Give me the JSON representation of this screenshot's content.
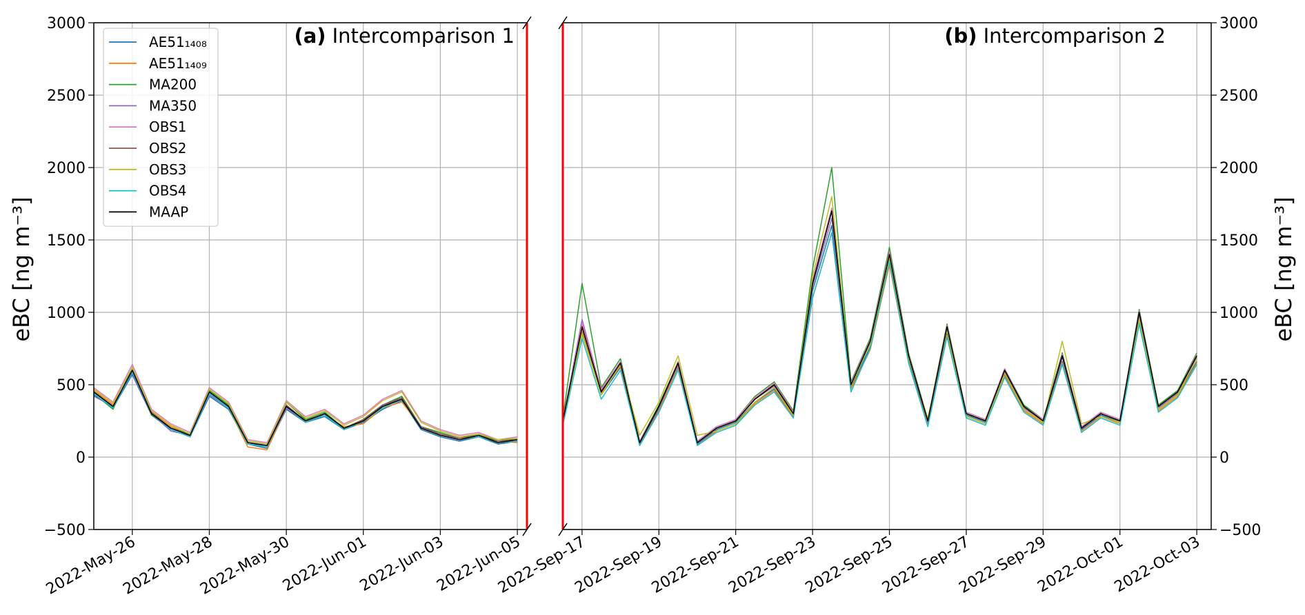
{
  "chart_data": [
    {
      "type": "line",
      "panel_label": "(a)",
      "title": "Intercomparison 1",
      "ylabel": "eBC [ng m⁻³]",
      "yaxis_side": "left",
      "legend": "upper left",
      "grid": true,
      "x": [
        "2022-05-25T00:00",
        "2022-05-25T12:00",
        "2022-05-26T00:00",
        "2022-05-26T12:00",
        "2022-05-27T00:00",
        "2022-05-27T12:00",
        "2022-05-28T00:00",
        "2022-05-28T12:00",
        "2022-05-29T00:00",
        "2022-05-29T12:00",
        "2022-05-30T00:00",
        "2022-05-30T12:00",
        "2022-05-31T00:00",
        "2022-05-31T12:00",
        "2022-06-01T00:00",
        "2022-06-01T12:00",
        "2022-06-02T00:00",
        "2022-06-02T12:00",
        "2022-06-03T00:00",
        "2022-06-03T12:00",
        "2022-06-04T00:00",
        "2022-06-04T12:00",
        "2022-06-05T00:00"
      ],
      "xlim": [
        "2022-05-25T00:00",
        "2022-06-05T06:00"
      ],
      "xticks": [
        {
          "value": "2022-05-26T00:00",
          "label": "2022-May-26"
        },
        {
          "value": "2022-05-28T00:00",
          "label": "2022-May-28"
        },
        {
          "value": "2022-05-30T00:00",
          "label": "2022-May-30"
        },
        {
          "value": "2022-06-01T00:00",
          "label": "2022-Jun-01"
        },
        {
          "value": "2022-06-03T00:00",
          "label": "2022-Jun-03"
        },
        {
          "value": "2022-06-05T00:00",
          "label": "2022-Jun-05"
        }
      ],
      "ylim": [
        -500,
        3000
      ],
      "yticks": [
        {
          "value": -500,
          "label": "−500"
        },
        0,
        500,
        1000,
        1500,
        2000,
        2500,
        3000
      ],
      "series": [
        {
          "name": "AE51₁₄₀₈",
          "color": "#1f77b4",
          "values": [
            430,
            340,
            570,
            290,
            190,
            140,
            420,
            330,
            90,
            60,
            330,
            240,
            280,
            190,
            240,
            330,
            390,
            190,
            140,
            110,
            140,
            90,
            110
          ]
        },
        {
          "name": "AE51₁₄₀₉",
          "color": "#ff7f0e",
          "values": [
            460,
            360,
            590,
            310,
            210,
            160,
            440,
            340,
            70,
            50,
            340,
            260,
            290,
            210,
            230,
            340,
            380,
            210,
            150,
            130,
            150,
            110,
            100
          ]
        },
        {
          "name": "MA200",
          "color": "#2ca02c",
          "values": [
            440,
            330,
            620,
            290,
            200,
            160,
            460,
            360,
            110,
            90,
            380,
            260,
            310,
            200,
            260,
            360,
            420,
            210,
            170,
            130,
            160,
            110,
            130
          ]
        },
        {
          "name": "MA350",
          "color": "#9467bd",
          "values": [
            420,
            350,
            580,
            300,
            180,
            150,
            430,
            340,
            100,
            70,
            340,
            240,
            300,
            190,
            250,
            350,
            410,
            200,
            160,
            120,
            140,
            100,
            110
          ]
        },
        {
          "name": "OBS1",
          "color": "#e377c2",
          "values": [
            480,
            380,
            640,
            330,
            230,
            170,
            480,
            380,
            120,
            100,
            390,
            280,
            330,
            230,
            290,
            400,
            460,
            250,
            190,
            150,
            170,
            120,
            140
          ]
        },
        {
          "name": "OBS2",
          "color": "#8c564b",
          "values": [
            450,
            350,
            600,
            310,
            200,
            150,
            450,
            350,
            100,
            80,
            360,
            250,
            300,
            200,
            260,
            360,
            410,
            210,
            160,
            130,
            150,
            110,
            120
          ]
        },
        {
          "name": "OBS3",
          "color": "#bcbd22",
          "values": [
            470,
            370,
            620,
            320,
            220,
            160,
            470,
            370,
            110,
            90,
            380,
            270,
            320,
            220,
            280,
            390,
            450,
            240,
            180,
            140,
            160,
            120,
            130
          ]
        },
        {
          "name": "OBS4",
          "color": "#17becf",
          "values": [
            440,
            340,
            590,
            300,
            190,
            140,
            440,
            340,
            90,
            70,
            350,
            240,
            290,
            190,
            250,
            340,
            400,
            200,
            150,
            120,
            140,
            100,
            110
          ]
        },
        {
          "name": "MAAP",
          "color": "#000000",
          "values": [
            450,
            350,
            600,
            300,
            200,
            150,
            450,
            350,
            100,
            80,
            350,
            250,
            300,
            200,
            250,
            350,
            400,
            200,
            150,
            120,
            150,
            100,
            120
          ]
        }
      ]
    },
    {
      "type": "line",
      "panel_label": "(b)",
      "title": "Intercomparison 2",
      "ylabel": "eBC [ng m⁻³]",
      "yaxis_side": "right",
      "grid": true,
      "x": [
        "2022-09-16T12:00",
        "2022-09-17T00:00",
        "2022-09-17T12:00",
        "2022-09-18T00:00",
        "2022-09-18T12:00",
        "2022-09-19T00:00",
        "2022-09-19T12:00",
        "2022-09-20T00:00",
        "2022-09-20T12:00",
        "2022-09-21T00:00",
        "2022-09-21T12:00",
        "2022-09-22T00:00",
        "2022-09-22T12:00",
        "2022-09-23T00:00",
        "2022-09-23T12:00",
        "2022-09-24T00:00",
        "2022-09-24T12:00",
        "2022-09-25T00:00",
        "2022-09-25T12:00",
        "2022-09-26T00:00",
        "2022-09-26T12:00",
        "2022-09-27T00:00",
        "2022-09-27T12:00",
        "2022-09-28T00:00",
        "2022-09-28T12:00",
        "2022-09-29T00:00",
        "2022-09-29T12:00",
        "2022-09-30T00:00",
        "2022-09-30T12:00",
        "2022-10-01T00:00",
        "2022-10-01T12:00",
        "2022-10-02T00:00",
        "2022-10-02T12:00",
        "2022-10-03T00:00"
      ],
      "xlim": [
        "2022-09-16T12:00",
        "2022-10-03T09:00"
      ],
      "xticks": [
        {
          "value": "2022-09-17T00:00",
          "label": "2022-Sep-17"
        },
        {
          "value": "2022-09-19T00:00",
          "label": "2022-Sep-19"
        },
        {
          "value": "2022-09-21T00:00",
          "label": "2022-Sep-21"
        },
        {
          "value": "2022-09-23T00:00",
          "label": "2022-Sep-23"
        },
        {
          "value": "2022-09-25T00:00",
          "label": "2022-Sep-25"
        },
        {
          "value": "2022-09-27T00:00",
          "label": "2022-Sep-27"
        },
        {
          "value": "2022-09-29T00:00",
          "label": "2022-Sep-29"
        },
        {
          "value": "2022-10-01T00:00",
          "label": "2022-Oct-01"
        },
        {
          "value": "2022-10-03T00:00",
          "label": "2022-Oct-03"
        }
      ],
      "ylim": [
        -500,
        3000
      ],
      "yticks": [
        {
          "value": -500,
          "label": "−500"
        },
        0,
        500,
        1000,
        1500,
        2000,
        2500,
        3000
      ],
      "series": [
        {
          "color": "#1f77b4",
          "values": [
            230,
            870,
            430,
            620,
            90,
            330,
            620,
            90,
            190,
            240,
            380,
            470,
            290,
            1150,
            1600,
            480,
            760,
            1350,
            660,
            230,
            850,
            290,
            240,
            570,
            330,
            240,
            660,
            190,
            290,
            240,
            940,
            330,
            430,
            660
          ]
        },
        {
          "color": "#ff7f0e",
          "values": [
            240,
            880,
            440,
            630,
            80,
            320,
            630,
            80,
            180,
            230,
            370,
            460,
            280,
            1100,
            1550,
            470,
            740,
            1330,
            650,
            220,
            840,
            280,
            230,
            560,
            320,
            230,
            650,
            180,
            280,
            230,
            920,
            320,
            420,
            650
          ]
        },
        {
          "color": "#2ca02c",
          "values": [
            270,
            1200,
            480,
            680,
            110,
            360,
            660,
            110,
            210,
            260,
            420,
            520,
            320,
            1300,
            2000,
            520,
            820,
            1450,
            720,
            260,
            920,
            310,
            260,
            610,
            360,
            260,
            720,
            210,
            310,
            260,
            1020,
            360,
            460,
            720
          ]
        },
        {
          "color": "#9467bd",
          "values": [
            250,
            950,
            460,
            640,
            100,
            340,
            640,
            100,
            200,
            250,
            400,
            490,
            300,
            1180,
            1650,
            490,
            790,
            1380,
            690,
            240,
            880,
            300,
            250,
            590,
            340,
            250,
            690,
            200,
            300,
            250,
            980,
            340,
            440,
            690
          ]
        },
        {
          "color": "#e377c2",
          "values": [
            260,
            920,
            470,
            660,
            110,
            350,
            660,
            110,
            210,
            260,
            410,
            510,
            310,
            1220,
            1720,
            510,
            810,
            1420,
            710,
            250,
            910,
            310,
            260,
            610,
            350,
            260,
            710,
            210,
            310,
            260,
            1010,
            350,
            450,
            710
          ]
        },
        {
          "color": "#8c564b",
          "values": [
            250,
            900,
            450,
            650,
            100,
            350,
            650,
            100,
            200,
            250,
            400,
            500,
            300,
            1200,
            1700,
            500,
            800,
            1400,
            700,
            250,
            900,
            300,
            250,
            600,
            350,
            250,
            700,
            200,
            300,
            250,
            1000,
            350,
            450,
            700
          ]
        },
        {
          "color": "#bcbd22",
          "values": [
            240,
            850,
            430,
            640,
            150,
            380,
            700,
            150,
            180,
            230,
            380,
            480,
            290,
            1250,
            1800,
            490,
            780,
            1380,
            680,
            270,
            880,
            280,
            230,
            580,
            330,
            240,
            800,
            230,
            280,
            240,
            950,
            330,
            430,
            680
          ]
        },
        {
          "color": "#17becf",
          "values": [
            220,
            820,
            400,
            600,
            80,
            310,
            600,
            80,
            170,
            220,
            360,
            450,
            270,
            1100,
            1550,
            450,
            750,
            1350,
            650,
            210,
            830,
            270,
            220,
            550,
            310,
            220,
            640,
            170,
            270,
            220,
            920,
            310,
            410,
            640
          ]
        },
        {
          "color": "#000000",
          "values": [
            250,
            900,
            450,
            650,
            100,
            350,
            650,
            100,
            200,
            250,
            400,
            500,
            300,
            1200,
            1700,
            500,
            800,
            1400,
            700,
            250,
            900,
            300,
            250,
            600,
            350,
            250,
            700,
            200,
            300,
            250,
            1000,
            350,
            450,
            700
          ]
        }
      ]
    }
  ]
}
